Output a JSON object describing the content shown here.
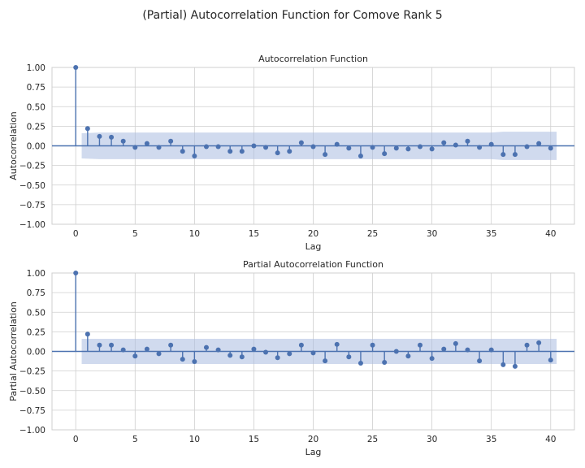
{
  "figure": {
    "suptitle": "(Partial) Autocorrelation Function for Comove Rank 5"
  },
  "colors": {
    "series": "#4c72b0",
    "band": "#a9bce0",
    "grid": "#cfcfcf",
    "axis": "#4c4c4c"
  },
  "chart_data": [
    {
      "type": "stem",
      "title": "Autocorrelation Function",
      "xlabel": "Lag",
      "ylabel": "Autocorrelation",
      "xlim": [
        -2,
        42
      ],
      "ylim": [
        -1.0,
        1.0
      ],
      "xticks": [
        0,
        5,
        10,
        15,
        20,
        25,
        30,
        35,
        40
      ],
      "yticks": [
        -1.0,
        -0.75,
        -0.5,
        -0.25,
        0.0,
        0.25,
        0.5,
        0.75,
        1.0
      ],
      "ytick_labels": [
        "−1.00",
        "−0.75",
        "−0.50",
        "−0.25",
        "0.00",
        "0.25",
        "0.50",
        "0.75",
        "1.00"
      ],
      "grid": true,
      "lags": [
        0,
        1,
        2,
        3,
        4,
        5,
        6,
        7,
        8,
        9,
        10,
        11,
        12,
        13,
        14,
        15,
        16,
        17,
        18,
        19,
        20,
        21,
        22,
        23,
        24,
        25,
        26,
        27,
        28,
        29,
        30,
        31,
        32,
        33,
        34,
        35,
        36,
        37,
        38,
        39,
        40
      ],
      "values": [
        1.0,
        0.22,
        0.12,
        0.11,
        0.06,
        -0.02,
        0.03,
        -0.02,
        0.06,
        -0.07,
        -0.13,
        -0.01,
        -0.01,
        -0.07,
        -0.07,
        0.0,
        -0.02,
        -0.09,
        -0.07,
        0.04,
        -0.01,
        -0.11,
        0.02,
        -0.03,
        -0.13,
        -0.02,
        -0.1,
        -0.03,
        -0.04,
        -0.01,
        -0.04,
        0.04,
        0.01,
        0.06,
        -0.02,
        0.02,
        -0.11,
        -0.11,
        -0.01,
        0.03,
        -0.03
      ],
      "conf_band": [
        0.0,
        0.16,
        0.17,
        0.17,
        0.17,
        0.17,
        0.17,
        0.17,
        0.17,
        0.17,
        0.17,
        0.17,
        0.17,
        0.17,
        0.17,
        0.17,
        0.17,
        0.17,
        0.17,
        0.17,
        0.17,
        0.17,
        0.17,
        0.17,
        0.17,
        0.17,
        0.17,
        0.17,
        0.17,
        0.17,
        0.17,
        0.17,
        0.17,
        0.17,
        0.17,
        0.17,
        0.18,
        0.18,
        0.18,
        0.18,
        0.18
      ]
    },
    {
      "type": "stem",
      "title": "Partial Autocorrelation Function",
      "xlabel": "Lag",
      "ylabel": "Partial Autocorrelation",
      "xlim": [
        -2,
        42
      ],
      "ylim": [
        -1.0,
        1.0
      ],
      "xticks": [
        0,
        5,
        10,
        15,
        20,
        25,
        30,
        35,
        40
      ],
      "yticks": [
        -1.0,
        -0.75,
        -0.5,
        -0.25,
        0.0,
        0.25,
        0.5,
        0.75,
        1.0
      ],
      "ytick_labels": [
        "−1.00",
        "−0.75",
        "−0.50",
        "−0.25",
        "0.00",
        "0.25",
        "0.50",
        "0.75",
        "1.00"
      ],
      "grid": true,
      "lags": [
        0,
        1,
        2,
        3,
        4,
        5,
        6,
        7,
        8,
        9,
        10,
        11,
        12,
        13,
        14,
        15,
        16,
        17,
        18,
        19,
        20,
        21,
        22,
        23,
        24,
        25,
        26,
        27,
        28,
        29,
        30,
        31,
        32,
        33,
        34,
        35,
        36,
        37,
        38,
        39,
        40
      ],
      "values": [
        1.0,
        0.22,
        0.08,
        0.08,
        0.02,
        -0.06,
        0.03,
        -0.03,
        0.08,
        -0.1,
        -0.13,
        0.05,
        0.02,
        -0.05,
        -0.07,
        0.03,
        -0.01,
        -0.08,
        -0.03,
        0.08,
        -0.02,
        -0.12,
        0.09,
        -0.07,
        -0.15,
        0.08,
        -0.14,
        0.0,
        -0.06,
        0.08,
        -0.09,
        0.03,
        0.1,
        0.02,
        -0.12,
        0.02,
        -0.17,
        -0.19,
        0.08,
        0.11,
        -0.11
      ],
      "conf_band": [
        0.0,
        0.16,
        0.16,
        0.16,
        0.16,
        0.16,
        0.16,
        0.16,
        0.16,
        0.16,
        0.16,
        0.16,
        0.16,
        0.16,
        0.16,
        0.16,
        0.16,
        0.16,
        0.16,
        0.16,
        0.16,
        0.16,
        0.16,
        0.16,
        0.16,
        0.16,
        0.16,
        0.16,
        0.16,
        0.16,
        0.16,
        0.16,
        0.16,
        0.16,
        0.16,
        0.16,
        0.16,
        0.16,
        0.16,
        0.16,
        0.16
      ]
    }
  ]
}
